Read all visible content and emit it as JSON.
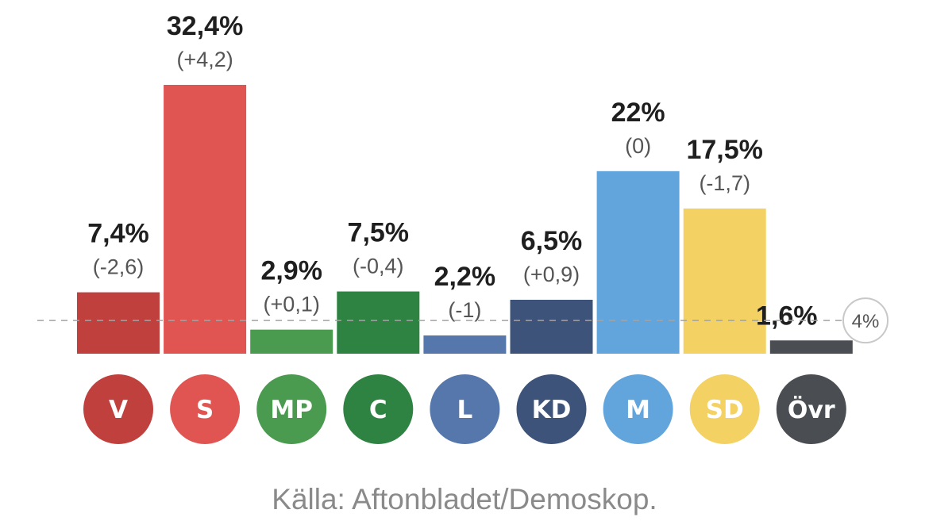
{
  "chart_data": {
    "type": "bar",
    "categories": [
      "V",
      "S",
      "MP",
      "C",
      "L",
      "KD",
      "M",
      "SD",
      "Övr"
    ],
    "values": [
      7.4,
      32.4,
      2.9,
      7.5,
      2.2,
      6.5,
      22,
      17.5,
      1.6
    ],
    "value_labels": [
      "7,4%",
      "32,4%",
      "2,9%",
      "7,5%",
      "2,2%",
      "6,5%",
      "22%",
      "17,5%",
      "1,6%"
    ],
    "change_labels": [
      "(-2,6)",
      "(+4,2)",
      "(+0,1)",
      "(-0,4)",
      "(-1)",
      "(+0,9)",
      "(0)",
      "(-1,7)",
      ""
    ],
    "colors": [
      "#c0403e",
      "#e05452",
      "#4a9a4f",
      "#2f8342",
      "#5677ab",
      "#3e5379",
      "#62a5dc",
      "#f3d163",
      "#4a4d51"
    ],
    "threshold": 4,
    "threshold_label": "4%",
    "ylim": [
      0,
      32.4
    ],
    "title": "",
    "xlabel": "",
    "ylabel": ""
  },
  "source": "Källa: Aftonbladet/Demoskop."
}
